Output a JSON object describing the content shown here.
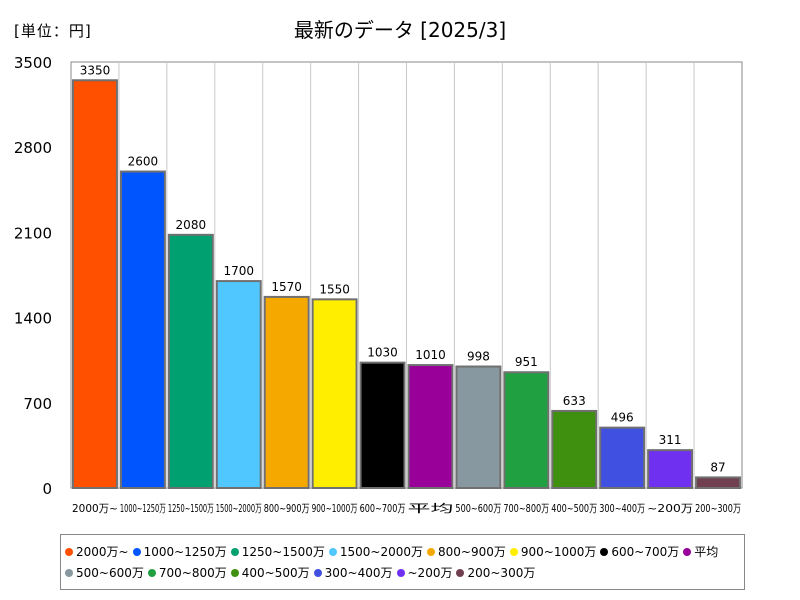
{
  "unit_label": "[単位：円]",
  "title": "最新のデータ [2025/3]",
  "chart_data": {
    "type": "bar",
    "title": "最新のデータ [2025/3]",
    "unit": "[単位：円]",
    "categories": [
      "2000万~",
      "1000~1250万",
      "1250~1500万",
      "1500~2000万",
      "800~900万",
      "900~1000万",
      "600~700万",
      "平均",
      "500~600万",
      "700~800万",
      "400~500万",
      "300~400万",
      "~200万",
      "200~300万"
    ],
    "values": [
      3350,
      2600,
      2080,
      1700,
      1570,
      1550,
      1030,
      1010,
      998,
      951,
      633,
      496,
      311,
      87
    ],
    "colors": [
      "#ff5000",
      "#0055ff",
      "#00a070",
      "#50c8ff",
      "#f5a800",
      "#ffee00",
      "#000000",
      "#990099",
      "#8898a0",
      "#20a040",
      "#409010",
      "#4050e0",
      "#7030f0",
      "#704050"
    ],
    "ylim": [
      0,
      3500
    ],
    "yticks": [
      0,
      700,
      1400,
      2100,
      2800,
      3500
    ],
    "grid": "vertical",
    "legend_position": "bottom"
  }
}
